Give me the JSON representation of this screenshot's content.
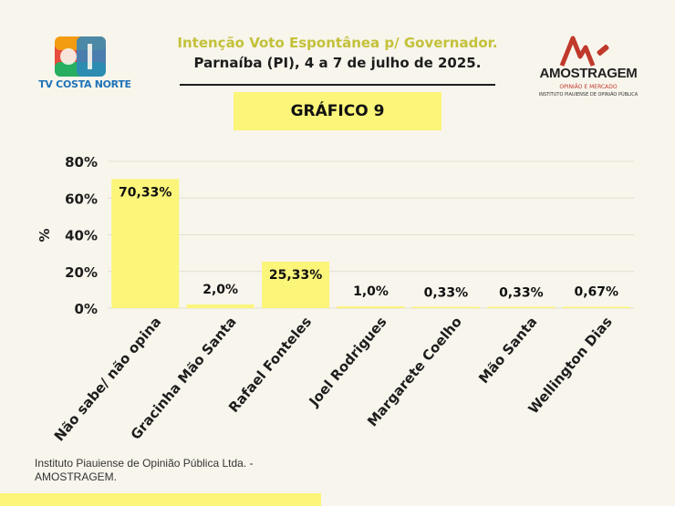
{
  "header": {
    "title_line1": "Intenção Voto Espontânea p/ Governador.",
    "title_line2": "Parnaíba (PI), 4 a 7 de julho de 2025."
  },
  "logos": {
    "left": {
      "caption": "TV COSTA NORTE"
    },
    "right": {
      "name": "AMOSTRAGEM",
      "subtitle": "OPINIÃO E MERCADO",
      "subtitle2": "INSTITUTO PIAUIENSE DE OPINIÃO PÚBLICA"
    }
  },
  "badge": {
    "label": "GRÁFICO 9"
  },
  "footer": {
    "note": "Instituto Piauiense de Opinião Pública Ltda. - AMOSTRAGEM."
  },
  "colors": {
    "bar": "#fbf57a",
    "badge": "#fbf57a",
    "title_accent": "#c3c13a",
    "background": "#f8f5ec"
  },
  "chart_data": {
    "type": "bar",
    "ylabel": "%",
    "ylim": [
      0,
      80
    ],
    "yticks": [
      0,
      20,
      40,
      60,
      80
    ],
    "ytick_labels": [
      "0%",
      "20%",
      "40%",
      "60%",
      "80%"
    ],
    "grid": true,
    "categories": [
      "Não sabe/ não opina",
      "Gracinha Mão Santa",
      "Rafael Fonteles",
      "Joel Rodrigues",
      "Margarete Coelho",
      "Mão Santa",
      "Wellington Dias"
    ],
    "values": [
      70.33,
      2.0,
      25.33,
      1.0,
      0.33,
      0.33,
      0.67
    ],
    "value_labels": [
      "70,33%",
      "2,0%",
      "25,33%",
      "1,0%",
      "0,33%",
      "0,33%",
      "0,67%"
    ]
  }
}
